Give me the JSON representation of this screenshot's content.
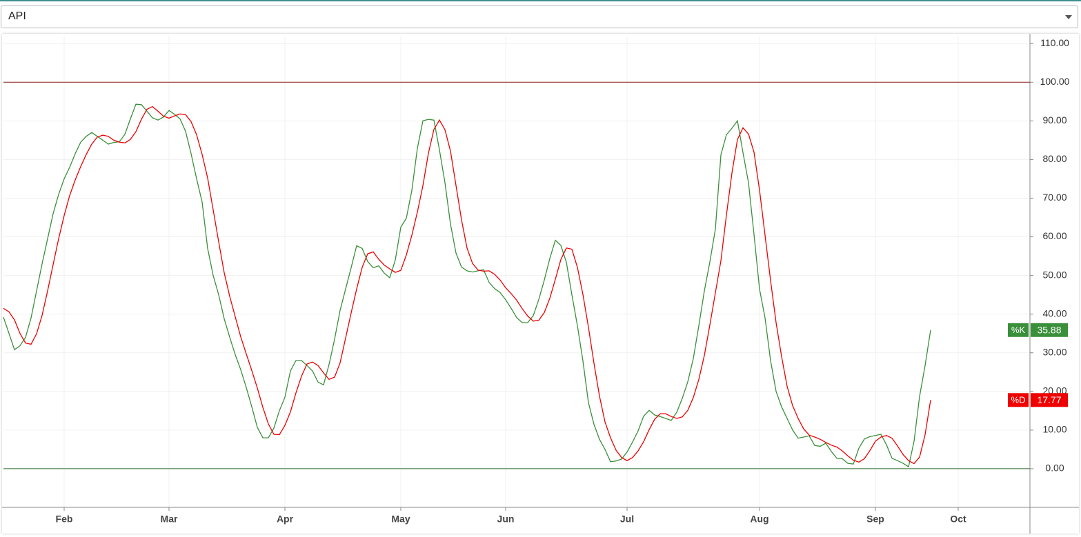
{
  "dropdown": {
    "value": "API"
  },
  "chart_data": {
    "type": "line",
    "categories": [
      null,
      null,
      null,
      null,
      null,
      null,
      null,
      null,
      null,
      null,
      null,
      "Feb",
      null,
      null,
      null,
      null,
      null,
      null,
      null,
      null,
      null,
      null,
      null,
      null,
      null,
      null,
      null,
      null,
      null,
      null,
      "Mar",
      null,
      null,
      null,
      null,
      null,
      null,
      null,
      null,
      null,
      null,
      null,
      null,
      null,
      null,
      null,
      null,
      null,
      null,
      null,
      null,
      "Apr",
      null,
      null,
      null,
      null,
      null,
      null,
      null,
      null,
      null,
      null,
      null,
      null,
      null,
      null,
      null,
      null,
      null,
      null,
      null,
      null,
      "May",
      null,
      null,
      null,
      null,
      null,
      null,
      null,
      null,
      null,
      null,
      null,
      null,
      null,
      null,
      null,
      null,
      null,
      null,
      "Jun",
      null,
      null,
      null,
      null,
      null,
      null,
      null,
      null,
      null,
      null,
      null,
      null,
      null,
      null,
      null,
      null,
      null,
      null,
      null,
      null,
      null,
      "Jul",
      null,
      null,
      null,
      null,
      null,
      null,
      null,
      null,
      null,
      null,
      null,
      null,
      null,
      null,
      null,
      null,
      null,
      null,
      null,
      null,
      null,
      null,
      null,
      "Aug",
      null,
      null,
      null,
      null,
      null,
      null,
      null,
      null,
      null,
      null,
      null,
      null,
      null,
      null,
      null,
      null,
      null,
      null,
      null,
      null,
      "Sep",
      null,
      null,
      null,
      null,
      null,
      null,
      null,
      null,
      null,
      null,
      null,
      null,
      null,
      null,
      "Oct"
    ],
    "series": [
      {
        "name": "%K",
        "color": "#3a8f3a",
        "values": [
          39.2,
          35,
          30.8,
          31.8,
          34,
          39,
          46,
          53,
          59.5,
          66,
          71,
          75,
          78,
          81.5,
          84.5,
          86,
          87,
          86,
          85,
          84,
          84.4,
          84.6,
          86.5,
          90.5,
          94.3,
          94.2,
          92.5,
          90.8,
          90.2,
          91,
          92.7,
          91.7,
          90.5,
          87.3,
          81.5,
          75,
          69,
          57,
          50,
          45,
          38.8,
          34,
          29.5,
          25.6,
          21,
          16,
          10.7,
          8,
          8,
          10.5,
          15,
          18.5,
          25.3,
          28,
          28,
          26.7,
          25.3,
          22.4,
          21.7,
          27,
          33.5,
          41,
          46.5,
          52,
          57.7,
          57,
          53.6,
          52,
          52.5,
          50.6,
          49.4,
          54,
          62.5,
          64.8,
          72,
          82.9,
          90,
          90.4,
          90.2,
          82.5,
          74,
          63.3,
          55.8,
          52.2,
          51.2,
          50.9,
          51.2,
          51.5,
          48.2,
          46.6,
          45.6,
          43.7,
          41.5,
          39.1,
          37.8,
          37.8,
          39.6,
          43.8,
          48.8,
          54.4,
          59.1,
          57.8,
          53.4,
          45,
          37,
          27.9,
          17.1,
          11.5,
          7.6,
          5,
          1.8,
          2,
          2.5,
          4.3,
          6.9,
          9.8,
          13.6,
          15.1,
          13.9,
          13.5,
          13,
          12.5,
          14.6,
          18.2,
          22.5,
          28.5,
          37,
          46,
          53.5,
          62,
          81.2,
          86.4,
          88.1,
          90,
          81.8,
          74,
          60.6,
          46.5,
          39,
          28,
          20,
          16,
          13,
          10,
          7.9,
          8.2,
          8.5,
          6,
          5.8,
          6.6,
          4.5,
          2.7,
          2.6,
          1.4,
          1.2,
          5.3,
          7.7,
          8.3,
          8.6,
          8.9,
          6.2,
          2.7,
          2.1,
          1.4,
          0.5,
          7.1,
          18.7,
          26.7,
          35.88,
          null,
          null,
          null,
          null,
          null
        ]
      },
      {
        "name": "%D",
        "color": "#ee0000",
        "values": [
          41.5,
          40.6,
          38.5,
          35,
          32.5,
          32.2,
          34.9,
          39.7,
          46,
          52.8,
          59.5,
          65.5,
          70.7,
          74.7,
          78.2,
          81.3,
          84,
          85.8,
          86.3,
          86,
          85,
          84.5,
          84.3,
          85.2,
          87.2,
          90.4,
          93,
          93.7,
          92.5,
          91.2,
          90.7,
          91.3,
          91.8,
          91.6,
          89.8,
          86.4,
          81.3,
          75.2,
          67,
          58.7,
          50.7,
          44.6,
          39.3,
          34.1,
          29.7,
          25.4,
          20.9,
          15.9,
          11.6,
          8.9,
          8.8,
          11.2,
          14.7,
          19.6,
          23.9,
          27.1,
          27.6,
          26.7,
          24.8,
          23.1,
          23.7,
          27.4,
          33.8,
          40.3,
          46.5,
          52.1,
          55.6,
          56.1,
          54.2,
          52.7,
          51.7,
          50.8,
          51.3,
          55.3,
          60.4,
          66.4,
          73.2,
          81.6,
          87.8,
          90.2,
          87.7,
          82.2,
          73.3,
          64.4,
          57.1,
          53.1,
          51.4,
          51.1,
          51.2,
          50.3,
          48.8,
          46.8,
          45.3,
          43.6,
          41.4,
          39.5,
          38.2,
          38.4,
          40.4,
          44.1,
          49,
          54.1,
          57.1,
          56.8,
          52.1,
          45.1,
          36.6,
          27.3,
          18.8,
          12.1,
          8,
          4.8,
          2.9,
          2.1,
          2.9,
          4.6,
          7,
          10.1,
          12.8,
          14.2,
          14.2,
          13.5,
          13,
          13.4,
          15.1,
          18.4,
          23.1,
          29.3,
          37.2,
          45.5,
          53.8,
          65.6,
          76.5,
          85.2,
          88.2,
          86.6,
          81.9,
          72.1,
          60.4,
          48.7,
          37.8,
          29,
          21.3,
          16.3,
          13,
          10.3,
          8.7,
          8.2,
          7.6,
          6.8,
          6.1,
          5.6,
          4.6,
          3.3,
          2.2,
          1.7,
          2.6,
          4.7,
          7.1,
          8.2,
          8.6,
          7.9,
          5.9,
          3.7,
          2.1,
          1.3,
          3,
          8.8,
          17.77,
          null,
          null,
          null,
          null,
          null
        ]
      }
    ],
    "ylim": [
      -10,
      112
    ],
    "yticks": [
      {
        "value": 0,
        "label": "0.00"
      },
      {
        "value": 10,
        "label": "10.00"
      },
      {
        "value": 20,
        "label": "20.00"
      },
      {
        "value": 30,
        "label": "30.00"
      },
      {
        "value": 40,
        "label": "40.00"
      },
      {
        "value": 50,
        "label": "50.00"
      },
      {
        "value": 60,
        "label": "60.00"
      },
      {
        "value": 70,
        "label": "70.00"
      },
      {
        "value": 80,
        "label": "80.00"
      },
      {
        "value": 90,
        "label": "90.00"
      },
      {
        "value": 100,
        "label": "100.00"
      },
      {
        "value": 110,
        "label": "110.00"
      }
    ],
    "reference_lines": [
      {
        "value": 100,
        "color": "#8b1a1a"
      },
      {
        "value": 0,
        "color": "#2e6b2e"
      }
    ],
    "grid": true
  }
}
